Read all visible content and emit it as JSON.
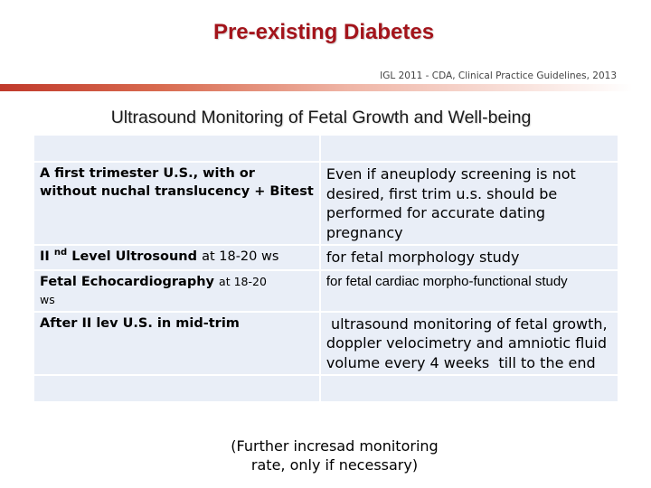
{
  "header": {
    "title": "Pre-existing Diabetes",
    "citation": "IGL 2011 - CDA, Clinical Practice Guidelines, 2013"
  },
  "section": {
    "subtitle": "Ultrasound Monitoring of Fetal Growth and Well-being"
  },
  "table": {
    "rows": [
      {
        "label": "A first trimester U.S., with or without nuchal translucency + Bitest",
        "description": "Even if aneuplody screening is not desired,  first trim u.s. should be performed for accurate dating pregnancy"
      },
      {
        "label_prefix": "II",
        "label_sup": "nd",
        "label_main": "Level Ultrosound",
        "label_suffix": "at 18-20 ws",
        "description": "for fetal morphology study"
      },
      {
        "label_main": "Fetal Echocardiography",
        "label_suffix": "at 18-20",
        "label_line2": "ws",
        "description": "for fetal cardiac morpho-functional study"
      },
      {
        "label": "After II lev U.S. in mid-trim",
        "description": " ultrasound monitoring of fetal growth, doppler velocimetry and amniotic fluid volume every 4 weeks  till to the end"
      }
    ]
  },
  "footer": {
    "note_line1": "(Further  incresad monitoring",
    "note_line2": "rate, only if necessary)"
  },
  "colors": {
    "title": "#a3141b",
    "table_fill": "#e9eef7",
    "divider_start": "#c0392b"
  }
}
